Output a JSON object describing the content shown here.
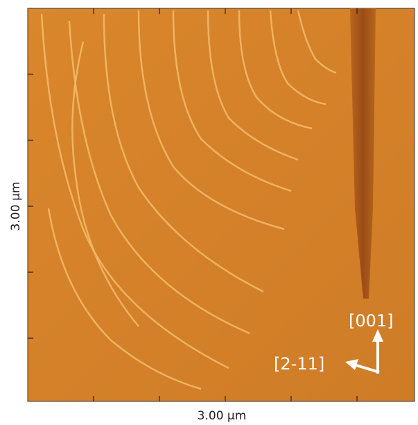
{
  "x_axis_label": "3.00 µm",
  "y_axis_label": "3.00 µm",
  "annotations": {
    "up": "[001]",
    "left": "[2-11]"
  }
}
